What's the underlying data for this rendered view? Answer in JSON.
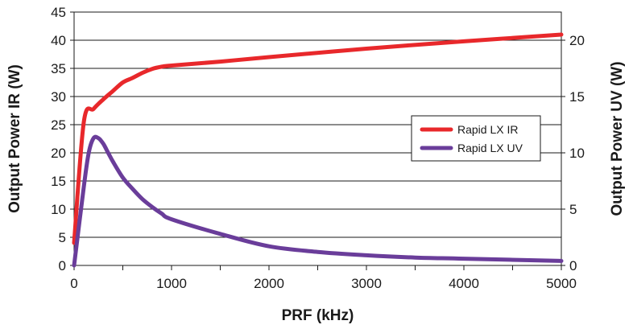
{
  "chart_data": {
    "type": "line",
    "title": "",
    "xlabel": "PRF (kHz)",
    "ylabel": "Output Power IR (W)",
    "y2label": "Output Power UV (W)",
    "xlim": [
      0,
      5000
    ],
    "ylim": [
      0,
      45
    ],
    "y2lim": [
      0,
      22.5
    ],
    "x_ticks": [
      0,
      1000,
      2000,
      3000,
      4000,
      5000
    ],
    "y_ticks": [
      0,
      5,
      10,
      15,
      20,
      25,
      30,
      35,
      40,
      45
    ],
    "y2_ticks": [
      0,
      5,
      10,
      15,
      20
    ],
    "grid": true,
    "legend_position": "right",
    "series": [
      {
        "name": "Rapid LX IR",
        "axis": "left",
        "color": "#e8282b",
        "x": [
          0,
          100,
          200,
          300,
          400,
          500,
          600,
          700,
          800,
          900,
          1000,
          1500,
          2000,
          3000,
          4000,
          5000
        ],
        "y": [
          4,
          25.5,
          27.8,
          29.5,
          31,
          32.5,
          33.3,
          34.2,
          34.9,
          35.3,
          35.5,
          36.2,
          37,
          38.5,
          39.8,
          41
        ]
      },
      {
        "name": "Rapid LX UV",
        "axis": "right",
        "color": "#6a3d9a",
        "x": [
          0,
          100,
          150,
          200,
          250,
          300,
          350,
          400,
          500,
          600,
          700,
          800,
          900,
          1000,
          1500,
          2000,
          2500,
          3000,
          3500,
          4000,
          5000
        ],
        "y": [
          0,
          7,
          10,
          11.3,
          11.3,
          10.8,
          10,
          9.2,
          7.8,
          6.8,
          5.9,
          5.2,
          4.6,
          4.1,
          2.8,
          1.7,
          1.2,
          0.9,
          0.7,
          0.6,
          0.4
        ]
      }
    ]
  }
}
